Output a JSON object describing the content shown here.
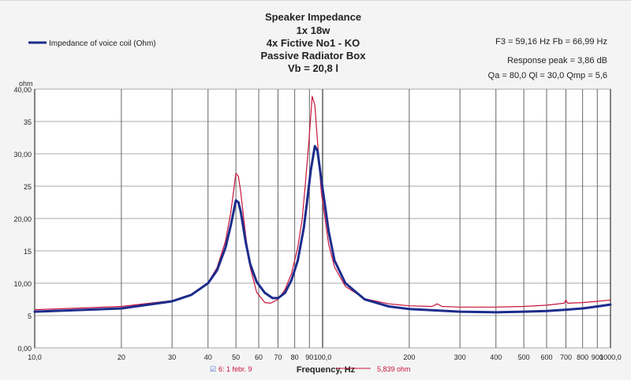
{
  "chart_data": {
    "type": "line",
    "title_lines": [
      "Speaker Impedance",
      "1x 18w",
      "4x Fictive No1 - KO",
      "Passive Radiator Box",
      "Vb = 20,8 l"
    ],
    "info_lines": [
      "F3 = 59,16 Hz  Fb = 66,99 Hz",
      "Response peak = 3,86 dB",
      "Qa = 80,0  Ql = 30,0  Qmp = 5,6"
    ],
    "legend": [
      {
        "name": "Impedance of voice coil (Ohm)",
        "color": "#1c2c8c"
      }
    ],
    "y_unit": "ohm",
    "xlabel": "Frequency, Hz",
    "x_scale": "log",
    "xlim": [
      10,
      1000
    ],
    "ylim": [
      0,
      40
    ],
    "x_ticks": [
      {
        "v": 10,
        "label": "10,0"
      },
      {
        "v": 20,
        "label": "20"
      },
      {
        "v": 30,
        "label": "30"
      },
      {
        "v": 40,
        "label": "40"
      },
      {
        "v": 50,
        "label": "50"
      },
      {
        "v": 60,
        "label": "60"
      },
      {
        "v": 70,
        "label": "70"
      },
      {
        "v": 80,
        "label": "80"
      },
      {
        "v": 90,
        "label": "90"
      },
      {
        "v": 100,
        "label": "100,0"
      },
      {
        "v": 200,
        "label": "200"
      },
      {
        "v": 300,
        "label": "300"
      },
      {
        "v": 400,
        "label": "400"
      },
      {
        "v": 500,
        "label": "500"
      },
      {
        "v": 600,
        "label": "600"
      },
      {
        "v": 700,
        "label": "700"
      },
      {
        "v": 800,
        "label": "800"
      },
      {
        "v": 900,
        "label": "900"
      },
      {
        "v": 1000,
        "label": "1000,0"
      }
    ],
    "y_ticks": [
      {
        "v": 0,
        "label": "0,00"
      },
      {
        "v": 5,
        "label": "5"
      },
      {
        "v": 10,
        "label": "10,00"
      },
      {
        "v": 15,
        "label": "15"
      },
      {
        "v": 20,
        "label": "20,00"
      },
      {
        "v": 25,
        "label": "25"
      },
      {
        "v": 30,
        "label": "30,00"
      },
      {
        "v": 35,
        "label": "35"
      },
      {
        "v": 40,
        "label": "40,00"
      }
    ],
    "series": [
      {
        "name": "Impedance of voice coil (Ohm)",
        "color": "#1c2c8c",
        "width": 3,
        "points": [
          [
            10,
            5.6
          ],
          [
            20,
            6.1
          ],
          [
            30,
            7.2
          ],
          [
            35,
            8.2
          ],
          [
            40,
            10.0
          ],
          [
            43,
            12.0
          ],
          [
            46,
            15.5
          ],
          [
            48,
            19.0
          ],
          [
            50,
            22.8
          ],
          [
            51,
            22.5
          ],
          [
            52,
            21.0
          ],
          [
            54,
            16.5
          ],
          [
            56,
            13.0
          ],
          [
            59,
            10.2
          ],
          [
            63,
            8.5
          ],
          [
            67,
            7.7
          ],
          [
            70,
            7.7
          ],
          [
            74,
            8.5
          ],
          [
            78,
            10.5
          ],
          [
            82,
            13.5
          ],
          [
            86,
            18.5
          ],
          [
            88,
            22.0
          ],
          [
            91,
            27.5
          ],
          [
            94,
            31.2
          ],
          [
            96,
            30.5
          ],
          [
            99,
            26.0
          ],
          [
            105,
            18.0
          ],
          [
            110,
            13.5
          ],
          [
            120,
            10.0
          ],
          [
            140,
            7.5
          ],
          [
            170,
            6.4
          ],
          [
            200,
            6.0
          ],
          [
            300,
            5.6
          ],
          [
            400,
            5.5
          ],
          [
            500,
            5.6
          ],
          [
            600,
            5.7
          ],
          [
            700,
            5.9
          ],
          [
            800,
            6.1
          ],
          [
            900,
            6.4
          ],
          [
            1000,
            6.7
          ]
        ]
      },
      {
        "name": "6: 1 febr. 9",
        "color": "#c8143c",
        "width": 1.2,
        "points": [
          [
            10,
            5.9
          ],
          [
            20,
            6.4
          ],
          [
            30,
            7.3
          ],
          [
            35,
            8.3
          ],
          [
            40,
            10.1
          ],
          [
            43,
            12.4
          ],
          [
            46,
            16.5
          ],
          [
            48,
            21.0
          ],
          [
            50,
            27.0
          ],
          [
            51,
            26.5
          ],
          [
            52,
            24.0
          ],
          [
            54,
            17.5
          ],
          [
            56,
            12.5
          ],
          [
            59,
            8.6
          ],
          [
            63,
            7.0
          ],
          [
            66,
            6.9
          ],
          [
            70,
            7.5
          ],
          [
            74,
            9.0
          ],
          [
            78,
            11.5
          ],
          [
            82,
            15.5
          ],
          [
            85,
            20.0
          ],
          [
            87,
            25.0
          ],
          [
            90,
            33.0
          ],
          [
            92,
            38.9
          ],
          [
            94,
            37.5
          ],
          [
            96,
            32.0
          ],
          [
            99,
            24.0
          ],
          [
            105,
            16.0
          ],
          [
            110,
            12.5
          ],
          [
            120,
            9.5
          ],
          [
            140,
            7.6
          ],
          [
            170,
            6.8
          ],
          [
            200,
            6.5
          ],
          [
            240,
            6.4
          ],
          [
            250,
            6.8
          ],
          [
            260,
            6.4
          ],
          [
            300,
            6.3
          ],
          [
            400,
            6.3
          ],
          [
            500,
            6.4
          ],
          [
            600,
            6.6
          ],
          [
            690,
            6.9
          ],
          [
            700,
            7.4
          ],
          [
            710,
            6.9
          ],
          [
            800,
            7.0
          ],
          [
            900,
            7.2
          ],
          [
            1000,
            7.4
          ]
        ]
      }
    ],
    "footer": {
      "series_tag": "6: 1 febr. 9",
      "readout": "5,839 ohm"
    }
  }
}
